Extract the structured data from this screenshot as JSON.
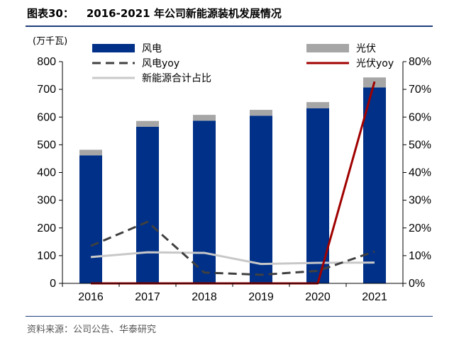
{
  "figure": {
    "number": "图表30：",
    "title": "2016-2021 年公司新能源装机发展情况",
    "source": "资料来源：公司公告、华泰研究"
  },
  "chart_data": {
    "type": "bar",
    "title": "2016-2021 年公司新能源装机发展情况",
    "categories": [
      "2016",
      "2017",
      "2018",
      "2019",
      "2020",
      "2021"
    ],
    "y_unit": "(万千瓦)",
    "ylim": [
      0,
      800
    ],
    "yticks": [
      "0",
      "100",
      "200",
      "300",
      "400",
      "500",
      "600",
      "700",
      "800"
    ],
    "y2lim": [
      0,
      0.8
    ],
    "y2ticks": [
      "0%",
      "10%",
      "20%",
      "30%",
      "40%",
      "50%",
      "60%",
      "70%",
      "80%"
    ],
    "stacked": true,
    "series": [
      {
        "name": "风电",
        "kind": "bar",
        "axis": "left",
        "color": "#003087",
        "values": [
          462,
          565,
          587,
          605,
          632,
          707
        ]
      },
      {
        "name": "光伏",
        "kind": "bar",
        "axis": "left",
        "color": "#a6a6a6",
        "values": [
          20,
          21,
          21,
          21,
          22,
          36
        ]
      },
      {
        "name": "风电yoy",
        "kind": "line",
        "axis": "right",
        "color": "#404040",
        "dash": true,
        "values": [
          0.135,
          0.222,
          0.039,
          0.031,
          0.045,
          0.115
        ]
      },
      {
        "name": "光伏yoy",
        "kind": "line",
        "axis": "right",
        "color": "#a00000",
        "dash": false,
        "values": [
          0.0,
          0.0,
          0.0,
          0.0,
          0.0,
          0.728
        ]
      },
      {
        "name": "新能源合计占比",
        "kind": "line",
        "axis": "right",
        "color": "#c8c8c8",
        "dash": false,
        "values": [
          0.095,
          0.112,
          0.11,
          0.07,
          0.074,
          0.075
        ]
      }
    ],
    "legend": "top",
    "grid": false
  }
}
